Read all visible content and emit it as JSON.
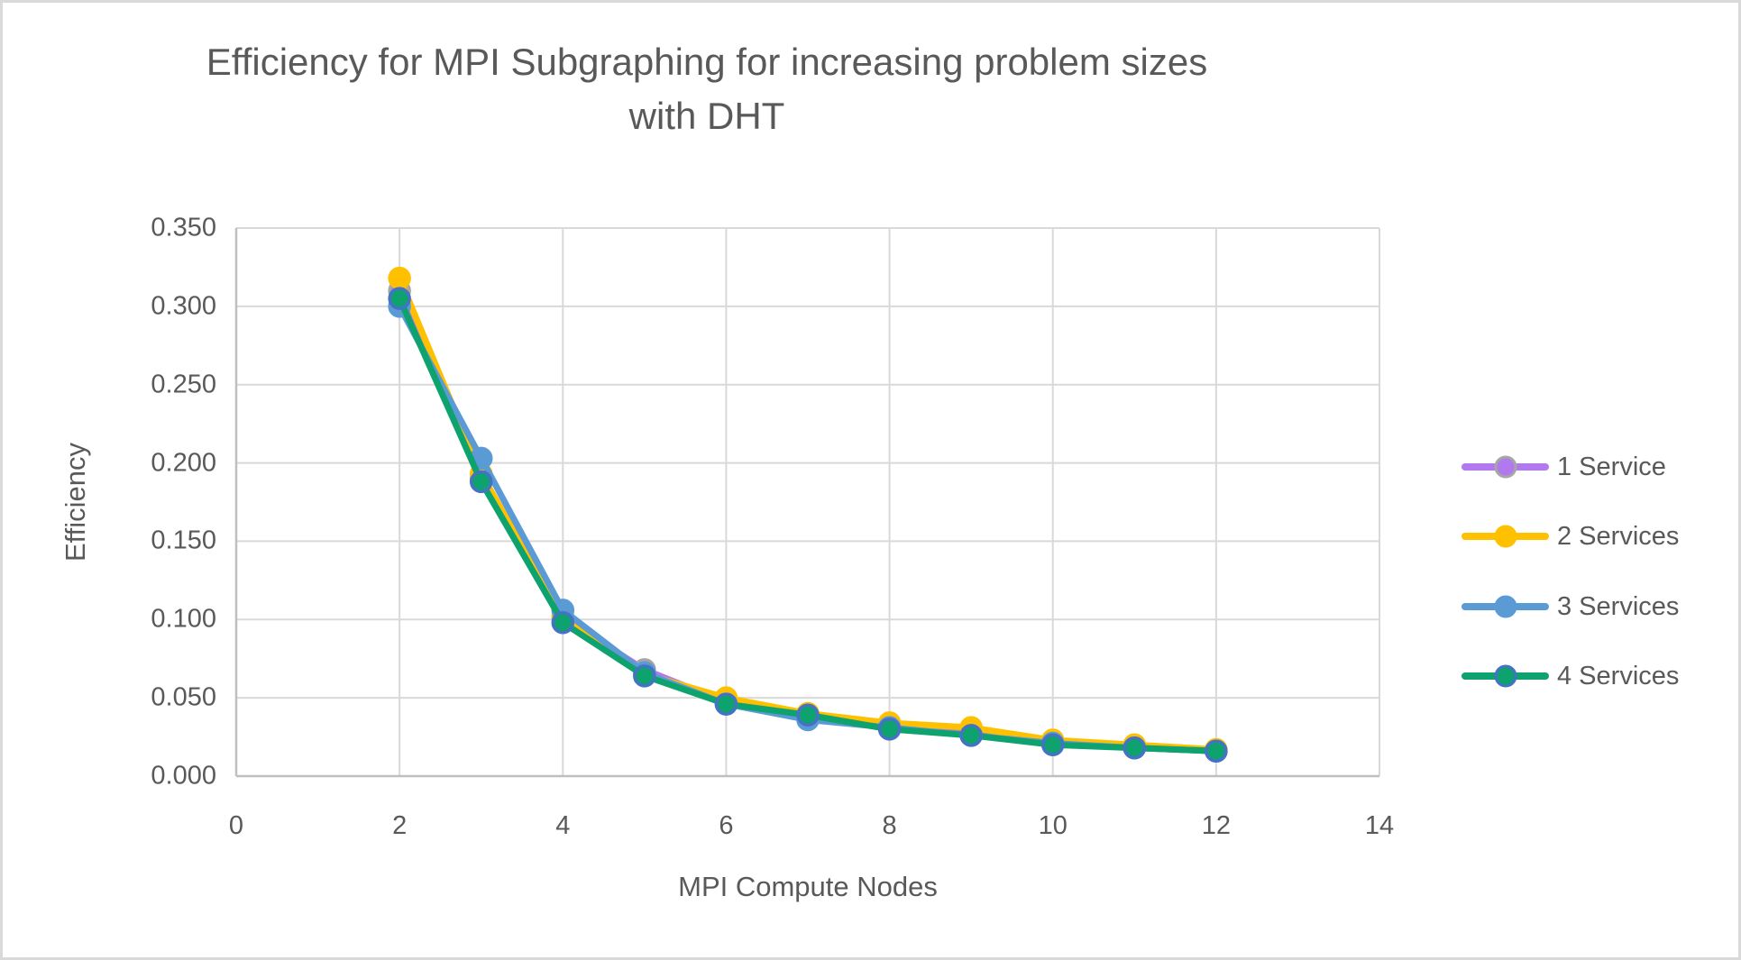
{
  "title": "Efficiency for MPI Subgraphing for increasing problem sizes with DHT",
  "style": {
    "text_color": "#595959",
    "gridline_color": "#D9D9D9",
    "axis_line_color": "#BFBFBF",
    "background": "#FFFFFF",
    "border_color": "#D9D9D9"
  },
  "chart_data": {
    "type": "line",
    "title": "Efficiency for MPI Subgraphing for increasing problem sizes with DHT",
    "xlabel": "MPI Compute Nodes",
    "ylabel": "Efficiency",
    "xlim": [
      0,
      14
    ],
    "ylim": [
      0,
      0.35
    ],
    "x_ticks": [
      0,
      2,
      4,
      6,
      8,
      10,
      12,
      14
    ],
    "y_ticks": [
      "0.000",
      "0.050",
      "0.100",
      "0.150",
      "0.200",
      "0.250",
      "0.300",
      "0.350"
    ],
    "grid": true,
    "legend_position": "right",
    "x": [
      2,
      3,
      4,
      5,
      6,
      7,
      8,
      9,
      10,
      11,
      12
    ],
    "series": [
      {
        "name": "1 Service",
        "color": "#B279EE",
        "marker_border": "#A6A6A6",
        "values": [
          0.31,
          0.19,
          0.101,
          0.068,
          0.047,
          0.037,
          0.031,
          0.027,
          0.021,
          0.018,
          0.016
        ]
      },
      {
        "name": "2 Services",
        "color": "#FFC000",
        "marker_border": "#FFC000",
        "values": [
          0.318,
          0.193,
          0.102,
          0.065,
          0.05,
          0.04,
          0.034,
          0.031,
          0.023,
          0.02,
          0.017
        ]
      },
      {
        "name": "3 Services",
        "color": "#5B9BD5",
        "marker_border": "#5B9BD5",
        "values": [
          0.3,
          0.203,
          0.106,
          0.066,
          0.046,
          0.036,
          0.031,
          0.026,
          0.021,
          0.018,
          0.016
        ]
      },
      {
        "name": "4 Services",
        "color": "#0EA26E",
        "marker_border": "#4472C4",
        "values": [
          0.305,
          0.188,
          0.098,
          0.064,
          0.046,
          0.039,
          0.03,
          0.026,
          0.02,
          0.018,
          0.016
        ]
      }
    ]
  }
}
